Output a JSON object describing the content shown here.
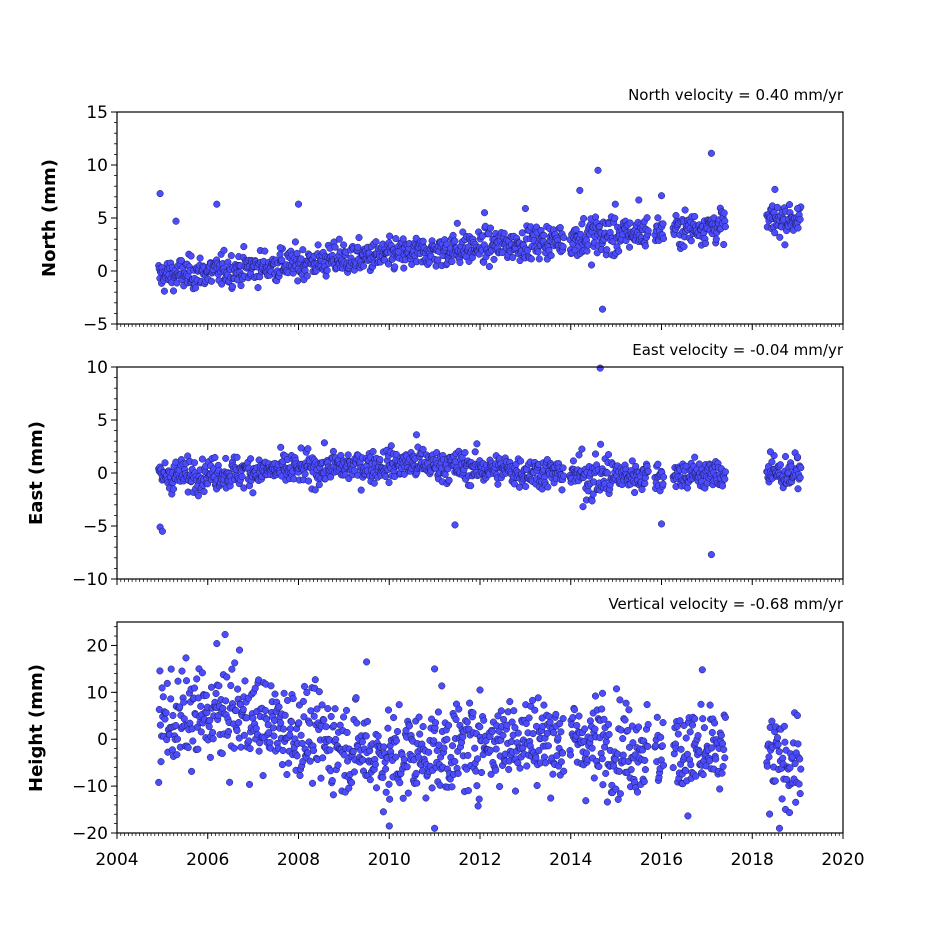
{
  "marker_color": "#4c4cff",
  "marker_edge": "#1a1a60",
  "chart_data": [
    {
      "type": "scatter",
      "title": "North velocity = 0.40 mm/yr",
      "ylabel": "North (mm)",
      "xlim": [
        2004,
        2020
      ],
      "ylim": [
        -5,
        15
      ],
      "yticks": [
        -5,
        0,
        5,
        10,
        15
      ],
      "ytick_labels": [
        "−5",
        "0",
        "5",
        "10",
        "15"
      ],
      "trend": [
        {
          "x": 2004.9,
          "y": -0.5
        },
        {
          "x": 2019.1,
          "y": 5.0
        }
      ],
      "x": [
        2004.95,
        2005.3,
        2006.2,
        2007.6,
        2008.0,
        2008.9,
        2010.2,
        2011.5,
        2012.1,
        2013.0,
        2014.2,
        2014.6,
        2014.7,
        2015.5,
        2016.0,
        2017.1,
        2018.5,
        2019.0
      ],
      "y": [
        7.3,
        4.7,
        6.3,
        2.2,
        6.3,
        3.0,
        1.8,
        4.5,
        5.5,
        5.9,
        7.6,
        9.5,
        -3.6,
        6.7,
        7.1,
        11.1,
        7.7,
        5.9
      ]
    },
    {
      "type": "scatter",
      "title": "East velocity = -0.04 mm/yr",
      "ylabel": "East (mm)",
      "xlim": [
        2004,
        2020
      ],
      "ylim": [
        -10,
        10
      ],
      "yticks": [
        -10,
        -5,
        0,
        5,
        10
      ],
      "ytick_labels": [
        "−10",
        "−5",
        "0",
        "5",
        "10"
      ],
      "trend": [
        {
          "x": 2004.9,
          "y": -0.3
        },
        {
          "x": 2010.5,
          "y": 0.9
        },
        {
          "x": 2014.5,
          "y": -0.3
        },
        {
          "x": 2019.1,
          "y": 0.0
        }
      ],
      "x": [
        2004.95,
        2005.0,
        2010.6,
        2011.45,
        2014.65,
        2016.0,
        2017.1,
        2018.4,
        2019.0
      ],
      "y": [
        -5.1,
        -5.5,
        3.6,
        -4.9,
        9.9,
        -4.8,
        -7.7,
        2.0,
        1.5
      ]
    },
    {
      "type": "scatter",
      "title": "Vertical velocity = -0.68 mm/yr",
      "ylabel": "Height (mm)",
      "xlabel": "",
      "xlim": [
        2004,
        2020
      ],
      "ylim": [
        -20,
        25
      ],
      "yticks": [
        -20,
        -10,
        0,
        10,
        20
      ],
      "ytick_labels": [
        "−20",
        "−10",
        "0",
        "10",
        "20"
      ],
      "xticks": [
        2004,
        2006,
        2008,
        2010,
        2012,
        2014,
        2016,
        2018,
        2020
      ],
      "xtick_labels": [
        "2004",
        "2006",
        "2008",
        "2010",
        "2012",
        "2014",
        "2016",
        "2018",
        "2020"
      ],
      "trend": [
        {
          "x": 2004.9,
          "y": 3.5
        },
        {
          "x": 2006.5,
          "y": 5.5
        },
        {
          "x": 2010.0,
          "y": -4.0
        },
        {
          "x": 2013.0,
          "y": 0.5
        },
        {
          "x": 2019.1,
          "y": -5.0
        }
      ],
      "x": [
        2006.2,
        2006.7,
        2009.5,
        2011.0,
        2012.0,
        2014.7,
        2016.9,
        2018.6,
        2010.0,
        2011.0
      ],
      "y": [
        20.4,
        19.0,
        16.5,
        15.0,
        10.5,
        9.8,
        14.8,
        -19.0,
        -18.5,
        -19.0
      ]
    }
  ]
}
